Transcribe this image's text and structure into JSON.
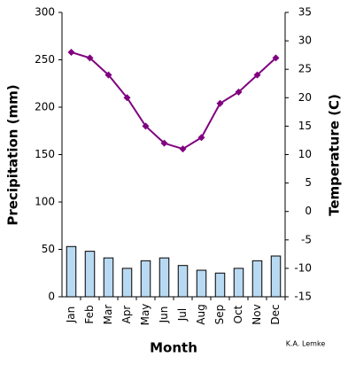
{
  "chart_data": {
    "type": "combo",
    "xlabel": "Month",
    "ylabel": "Precipitation (mm)",
    "y2label": "Temperature (C)",
    "annotation": "K.A. Lemke",
    "categories": [
      "Jan",
      "Feb",
      "Mar",
      "Apr",
      "May",
      "Jun",
      "Jul",
      "Aug",
      "Sep",
      "Oct",
      "Nov",
      "Dec"
    ],
    "series": [
      {
        "name": "Precipitation",
        "type": "bar",
        "color": "#b8d9f2",
        "axis": "y",
        "values": [
          53,
          48,
          41,
          30,
          38,
          41,
          33,
          28,
          25,
          30,
          38,
          43
        ]
      },
      {
        "name": "Temperature",
        "type": "line",
        "color": "#800080",
        "axis": "y2",
        "values": [
          28,
          27,
          24,
          20,
          15,
          12,
          11,
          13,
          19,
          21,
          24,
          27
        ]
      }
    ],
    "ylim": [
      0,
      300
    ],
    "yticks": [
      0,
      50,
      100,
      150,
      200,
      250,
      300
    ],
    "y2lim": [
      -15,
      35
    ],
    "y2ticks": [
      -15,
      -10,
      -5,
      0,
      5,
      10,
      15,
      20,
      25,
      30,
      35
    ],
    "grid": false
  }
}
